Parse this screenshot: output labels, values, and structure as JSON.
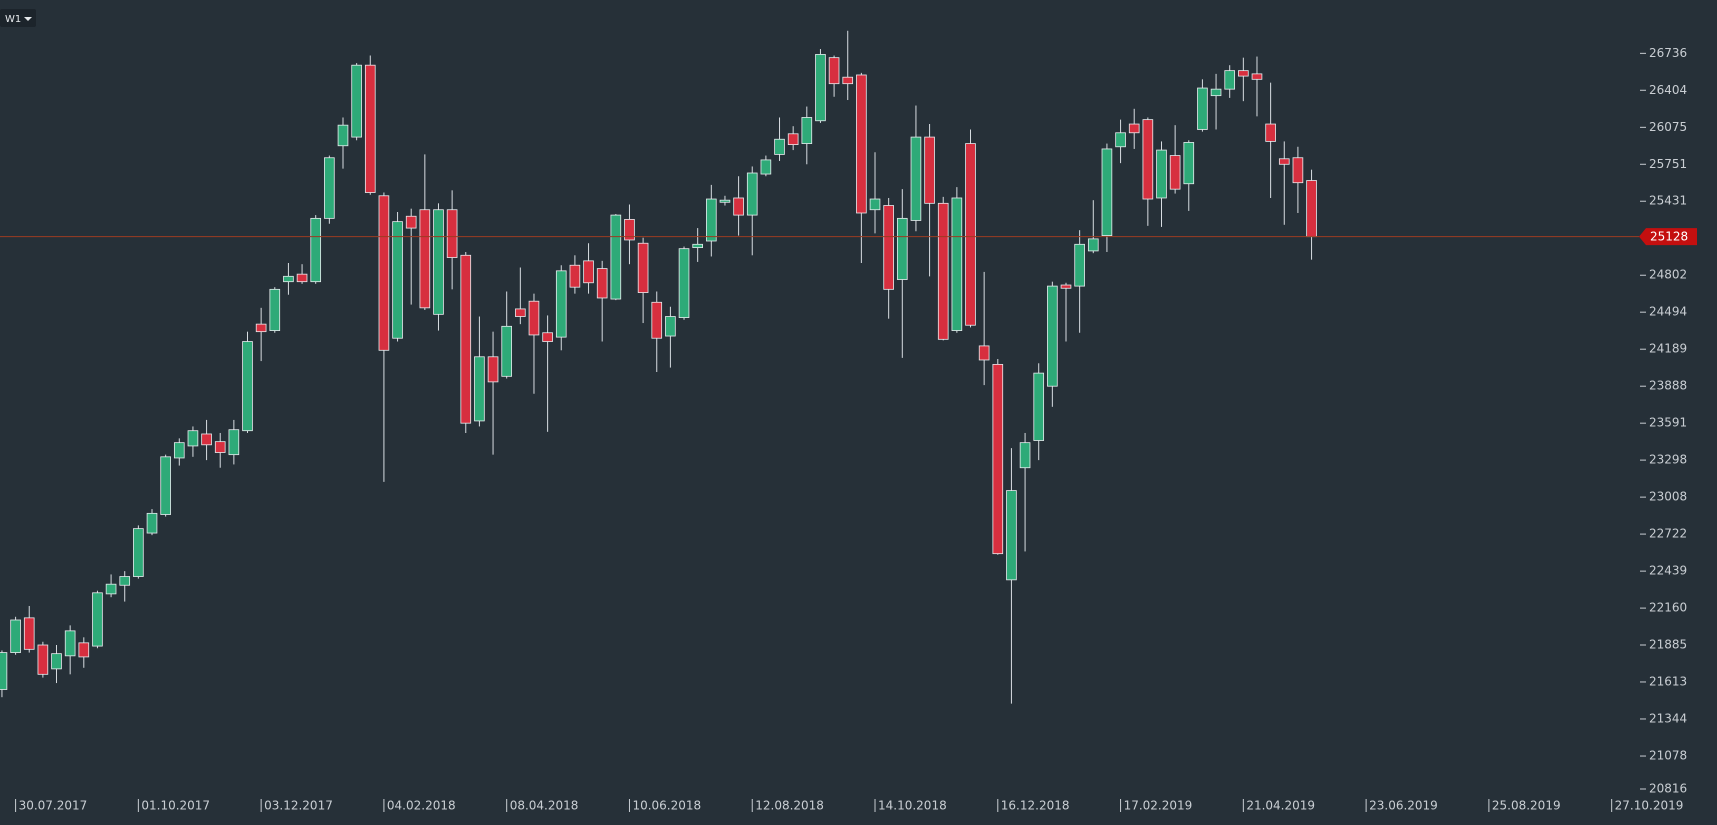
{
  "chart_data": {
    "type": "candlestick",
    "timeframe": "W1",
    "x": [
      "23.07.2017",
      "30.07.2017",
      "06.08.2017",
      "13.08.2017",
      "20.08.2017",
      "27.08.2017",
      "03.09.2017",
      "10.09.2017",
      "17.09.2017",
      "24.09.2017",
      "01.10.2017",
      "08.10.2017",
      "15.10.2017",
      "22.10.2017",
      "29.10.2017",
      "05.11.2017",
      "12.11.2017",
      "19.11.2017",
      "26.11.2017",
      "03.12.2017",
      "10.12.2017",
      "17.12.2017",
      "24.12.2017",
      "31.12.2017",
      "07.01.2018",
      "14.01.2018",
      "21.01.2018",
      "28.01.2018",
      "04.02.2018",
      "11.02.2018",
      "18.02.2018",
      "25.02.2018",
      "04.03.2018",
      "11.03.2018",
      "18.03.2018",
      "25.03.2018",
      "01.04.2018",
      "08.04.2018",
      "15.04.2018",
      "22.04.2018",
      "29.04.2018",
      "06.05.2018",
      "13.05.2018",
      "20.05.2018",
      "27.05.2018",
      "03.06.2018",
      "10.06.2018",
      "17.06.2018",
      "24.06.2018",
      "01.07.2018",
      "08.07.2018",
      "15.07.2018",
      "22.07.2018",
      "29.07.2018",
      "05.08.2018",
      "12.08.2018",
      "19.08.2018",
      "26.08.2018",
      "02.09.2018",
      "09.09.2018",
      "16.09.2018",
      "23.09.2018",
      "30.09.2018",
      "07.10.2018",
      "14.10.2018",
      "21.10.2018",
      "28.10.2018",
      "04.11.2018",
      "11.11.2018",
      "18.11.2018",
      "25.11.2018",
      "02.12.2018",
      "09.12.2018",
      "16.12.2018",
      "23.12.2018",
      "30.12.2018",
      "06.01.2019",
      "13.01.2019",
      "20.01.2019",
      "27.01.2019",
      "03.02.2019",
      "10.02.2019",
      "17.02.2019",
      "24.02.2019",
      "03.03.2019",
      "10.03.2019",
      "17.03.2019",
      "24.03.2019",
      "31.03.2019",
      "07.04.2019",
      "14.04.2019",
      "21.04.2019",
      "28.04.2019",
      "05.05.2019",
      "12.05.2019",
      "19.05.2019",
      "26.05.2019"
    ],
    "open": [
      21558,
      21829,
      22087,
      21885,
      21709,
      21805,
      21901,
      21877,
      22267,
      22332,
      22398,
      22730,
      22873,
      23315,
      23410,
      23505,
      23444,
      23341,
      23531,
      24395,
      24342,
      24748,
      24811,
      24748,
      25284,
      25913,
      25989,
      26629,
      25478,
      24279,
      25302,
      25358,
      24476,
      25358,
      24970,
      23609,
      24127,
      23968,
      24521,
      24585,
      24324,
      24288,
      24886,
      24923,
      24858,
      24603,
      25275,
      25072,
      24576,
      24297,
      24449,
      25035,
      25091,
      25422,
      25459,
      25312,
      25666,
      25837,
      26018,
      25932,
      26133,
      26697,
      26521,
      26541,
      25358,
      25394,
      24766,
      25266,
      25989,
      25413,
      24342,
      25932,
      24216,
      24065,
      22373,
      23238,
      23453,
      23888,
      24720,
      24711,
      25007,
      25137,
      25904,
      26104,
      26143,
      25459,
      25827,
      25582,
      26056,
      26356,
      26414,
      26580,
      26551,
      26104,
      25799,
      25808,
      25610
    ],
    "high": [
      21845,
      22095,
      22176,
      21909,
      21885,
      22031,
      21942,
      22291,
      22414,
      22439,
      22789,
      22915,
      23341,
      23470,
      23565,
      23617,
      23513,
      23617,
      24333,
      24530,
      24702,
      24905,
      24895,
      25312,
      25827,
      26162,
      26648,
      26716,
      25506,
      25339,
      25367,
      25837,
      25413,
      25525,
      24998,
      24458,
      24333,
      24666,
      24867,
      24648,
      24467,
      24886,
      24970,
      25072,
      24923,
      25321,
      25403,
      25119,
      24666,
      24539,
      25044,
      25201,
      25572,
      25478,
      25647,
      25732,
      25827,
      26162,
      26085,
      26259,
      26775,
      26716,
      26941,
      26560,
      25856,
      25459,
      25535,
      26268,
      26104,
      25469,
      25553,
      26056,
      24830,
      24109,
      23393,
      23513,
      24074,
      24748,
      24739,
      25183,
      25440,
      25932,
      26143,
      26239,
      26162,
      25951,
      26094,
      25961,
      26502,
      26551,
      26629,
      26697,
      26707,
      26472,
      25951,
      25904,
      25704
    ],
    "low": [
      21502,
      21813,
      21829,
      21645,
      21605,
      21669,
      21717,
      21861,
      22242,
      22209,
      22382,
      22714,
      22857,
      23255,
      23324,
      23298,
      23238,
      23264,
      23513,
      24092,
      24324,
      24639,
      24730,
      24730,
      25238,
      25713,
      25961,
      25487,
      23127,
      24252,
      24557,
      24512,
      24342,
      24684,
      23513,
      23565,
      23341,
      23950,
      24395,
      23827,
      23522,
      24180,
      24648,
      24648,
      24252,
      24594,
      24895,
      24404,
      24003,
      24039,
      24431,
      24914,
      24960,
      25394,
      25137,
      24970,
      25647,
      25780,
      25875,
      25751,
      26114,
      26346,
      26317,
      24905,
      25156,
      24440,
      24118,
      25174,
      24793,
      24261,
      24324,
      24368,
      23897,
      22564,
      21455,
      22589,
      23298,
      23722,
      24252,
      24324,
      24988,
      24998,
      25761,
      25885,
      25220,
      25211,
      25497,
      25348,
      26037,
      26056,
      26336,
      26307,
      26172,
      25459,
      25229,
      25330,
      24933
    ],
    "close": [
      21829,
      22071,
      21853,
      21669,
      21821,
      21990,
      21797,
      22275,
      22340,
      22398,
      22764,
      22882,
      23324,
      23436,
      23531,
      23419,
      23358,
      23539,
      24252,
      24333,
      24684,
      24793,
      24748,
      25284,
      25808,
      26094,
      26629,
      25506,
      24180,
      25256,
      25201,
      24530,
      25358,
      24951,
      23591,
      24127,
      23923,
      24377,
      24458,
      24306,
      24252,
      24839,
      24702,
      24739,
      24612,
      25312,
      25100,
      24657,
      24279,
      24458,
      25026,
      25063,
      25450,
      25440,
      25312,
      25675,
      25789,
      25970,
      25923,
      26162,
      26726,
      26463,
      26463,
      25330,
      25450,
      24684,
      25284,
      25989,
      25413,
      24270,
      25459,
      24386,
      24101,
      22572,
      23059,
      23436,
      23994,
      24711,
      24693,
      25063,
      25109,
      25885,
      26027,
      26027,
      25450,
      25875,
      25535,
      25942,
      26424,
      26414,
      26580,
      26531,
      26502,
      25951,
      25751,
      25591,
      25128
    ],
    "up_color": "#2eaa78",
    "down_color": "#d72f3f",
    "log_scale": true,
    "ylim": [
      20816,
      27223
    ],
    "yticks": [
      26736,
      26404,
      26075,
      25751,
      25431,
      24802,
      24494,
      24189,
      23888,
      23591,
      23298,
      23008,
      22722,
      22439,
      22160,
      21885,
      21613,
      21344,
      21078,
      20816
    ],
    "xlim": [
      "22.07.2017",
      "09.11.2019"
    ],
    "xticks": [
      "30.07.2017",
      "01.10.2017",
      "03.12.2017",
      "04.02.2018",
      "08.04.2018",
      "10.06.2018",
      "12.08.2018",
      "14.10.2018",
      "16.12.2018",
      "17.02.2019",
      "21.04.2019",
      "23.06.2019",
      "25.08.2019",
      "27.10.2019"
    ],
    "last_price": 25128,
    "last_price_color": "#c40f0f"
  }
}
